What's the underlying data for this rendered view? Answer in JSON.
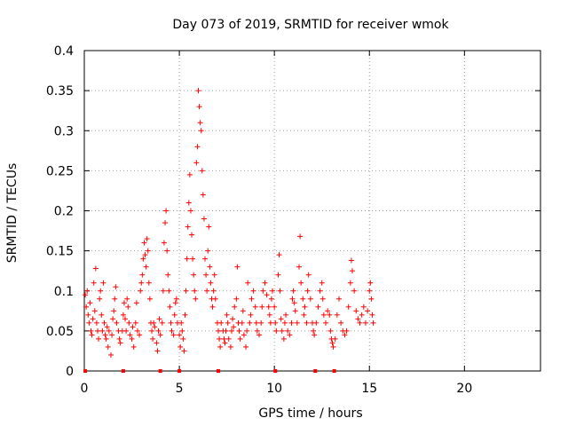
{
  "chart_data": {
    "type": "scatter",
    "title": "Day 073 of 2019, SRMTID for receiver wmok",
    "xlabel": "GPS time / hours",
    "ylabel": "SRMTID / TECUs",
    "xlim": [
      0,
      24
    ],
    "ylim": [
      0,
      0.4
    ],
    "x_ticks": [
      0,
      5,
      10,
      15,
      20
    ],
    "y_ticks": [
      0,
      0.05,
      0.1,
      0.15,
      0.2,
      0.25,
      0.3,
      0.35,
      0.4
    ],
    "x_tick_labels": [
      "0",
      "5",
      "10",
      "15",
      "20"
    ],
    "y_tick_labels": [
      "0",
      "0.05",
      "0.1",
      "0.15",
      "0.2",
      "0.25",
      "0.3",
      "0.35",
      "0.4"
    ],
    "grid": true,
    "marker": "+",
    "series_color": "#ff0000",
    "series": [
      {
        "name": "SRMTID",
        "points": [
          [
            0.05,
            0.095
          ],
          [
            0.1,
            0.08
          ],
          [
            0.15,
            0.1
          ],
          [
            0.2,
            0.07
          ],
          [
            0.25,
            0.06
          ],
          [
            0.3,
            0.085
          ],
          [
            0.35,
            0.05
          ],
          [
            0.4,
            0.045
          ],
          [
            0.45,
            0.065
          ],
          [
            0.5,
            0.11
          ],
          [
            0.55,
            0.075
          ],
          [
            0.6,
            0.128
          ],
          [
            0.65,
            0.06
          ],
          [
            0.7,
            0.05
          ],
          [
            0.75,
            0.04
          ],
          [
            0.8,
            0.09
          ],
          [
            0.85,
            0.1
          ],
          [
            0.9,
            0.07
          ],
          [
            0.95,
            0.05
          ],
          [
            1.0,
            0.11
          ],
          [
            1.05,
            0.06
          ],
          [
            1.1,
            0.045
          ],
          [
            1.15,
            0.04
          ],
          [
            1.2,
            0.055
          ],
          [
            1.25,
            0.03
          ],
          [
            1.3,
            0.05
          ],
          [
            1.4,
            0.02
          ],
          [
            1.45,
            0.045
          ],
          [
            1.5,
            0.065
          ],
          [
            1.55,
            0.075
          ],
          [
            1.6,
            0.09
          ],
          [
            1.65,
            0.105
          ],
          [
            1.7,
            0.06
          ],
          [
            1.8,
            0.05
          ],
          [
            1.85,
            0.04
          ],
          [
            1.9,
            0.035
          ],
          [
            2.0,
            0.05
          ],
          [
            2.05,
            0.07
          ],
          [
            2.1,
            0.085
          ],
          [
            2.15,
            0.065
          ],
          [
            2.2,
            0.05
          ],
          [
            2.25,
            0.09
          ],
          [
            2.3,
            0.08
          ],
          [
            2.35,
            0.06
          ],
          [
            2.4,
            0.045
          ],
          [
            2.5,
            0.04
          ],
          [
            2.55,
            0.055
          ],
          [
            2.6,
            0.03
          ],
          [
            2.7,
            0.06
          ],
          [
            2.75,
            0.085
          ],
          [
            2.8,
            0.05
          ],
          [
            2.9,
            0.045
          ],
          [
            2.95,
            0.1
          ],
          [
            3.0,
            0.11
          ],
          [
            3.05,
            0.12
          ],
          [
            3.1,
            0.14
          ],
          [
            3.15,
            0.16
          ],
          [
            3.2,
            0.145
          ],
          [
            3.25,
            0.13
          ],
          [
            3.3,
            0.165
          ],
          [
            3.35,
            0.15
          ],
          [
            3.4,
            0.11
          ],
          [
            3.45,
            0.09
          ],
          [
            3.5,
            0.06
          ],
          [
            3.55,
            0.05
          ],
          [
            3.6,
            0.04
          ],
          [
            3.65,
            0.06
          ],
          [
            3.7,
            0.055
          ],
          [
            3.8,
            0.035
          ],
          [
            3.85,
            0.025
          ],
          [
            3.9,
            0.05
          ],
          [
            3.95,
            0.065
          ],
          [
            4.0,
            0.045
          ],
          [
            4.1,
            0.06
          ],
          [
            4.15,
            0.1
          ],
          [
            4.2,
            0.16
          ],
          [
            4.25,
            0.185
          ],
          [
            4.3,
            0.2
          ],
          [
            4.35,
            0.15
          ],
          [
            4.4,
            0.12
          ],
          [
            4.45,
            0.1
          ],
          [
            4.5,
            0.08
          ],
          [
            4.55,
            0.06
          ],
          [
            4.6,
            0.05
          ],
          [
            4.7,
            0.045
          ],
          [
            4.75,
            0.07
          ],
          [
            4.8,
            0.085
          ],
          [
            4.85,
            0.09
          ],
          [
            4.9,
            0.06
          ],
          [
            5.0,
            0.045
          ],
          [
            5.05,
            0.03
          ],
          [
            5.1,
            0.06
          ],
          [
            5.15,
            0.05
          ],
          [
            5.2,
            0.04
          ],
          [
            5.25,
            0.025
          ],
          [
            5.3,
            0.07
          ],
          [
            5.35,
            0.1
          ],
          [
            5.4,
            0.14
          ],
          [
            5.45,
            0.18
          ],
          [
            5.5,
            0.21
          ],
          [
            5.55,
            0.245
          ],
          [
            5.6,
            0.2
          ],
          [
            5.65,
            0.17
          ],
          [
            5.7,
            0.14
          ],
          [
            5.75,
            0.12
          ],
          [
            5.8,
            0.1
          ],
          [
            5.85,
            0.09
          ],
          [
            5.9,
            0.26
          ],
          [
            5.95,
            0.28
          ],
          [
            6.0,
            0.35
          ],
          [
            6.05,
            0.33
          ],
          [
            6.1,
            0.31
          ],
          [
            6.15,
            0.3
          ],
          [
            6.2,
            0.25
          ],
          [
            6.25,
            0.22
          ],
          [
            6.3,
            0.19
          ],
          [
            6.35,
            0.14
          ],
          [
            6.4,
            0.12
          ],
          [
            6.45,
            0.1
          ],
          [
            6.5,
            0.15
          ],
          [
            6.55,
            0.18
          ],
          [
            6.6,
            0.13
          ],
          [
            6.65,
            0.11
          ],
          [
            6.7,
            0.09
          ],
          [
            6.75,
            0.08
          ],
          [
            6.8,
            0.1
          ],
          [
            6.85,
            0.12
          ],
          [
            6.9,
            0.09
          ],
          [
            7.0,
            0.06
          ],
          [
            7.05,
            0.05
          ],
          [
            7.1,
            0.04
          ],
          [
            7.15,
            0.03
          ],
          [
            7.2,
            0.06
          ],
          [
            7.3,
            0.05
          ],
          [
            7.35,
            0.04
          ],
          [
            7.4,
            0.035
          ],
          [
            7.45,
            0.05
          ],
          [
            7.5,
            0.07
          ],
          [
            7.55,
            0.06
          ],
          [
            7.6,
            0.04
          ],
          [
            7.7,
            0.03
          ],
          [
            7.75,
            0.05
          ],
          [
            7.8,
            0.065
          ],
          [
            7.85,
            0.055
          ],
          [
            7.9,
            0.08
          ],
          [
            8.0,
            0.09
          ],
          [
            8.05,
            0.13
          ],
          [
            8.1,
            0.06
          ],
          [
            8.15,
            0.05
          ],
          [
            8.2,
            0.04
          ],
          [
            8.3,
            0.06
          ],
          [
            8.35,
            0.075
          ],
          [
            8.4,
            0.045
          ],
          [
            8.5,
            0.03
          ],
          [
            8.55,
            0.05
          ],
          [
            8.6,
            0.11
          ],
          [
            8.7,
            0.06
          ],
          [
            8.75,
            0.07
          ],
          [
            8.8,
            0.09
          ],
          [
            8.9,
            0.1
          ],
          [
            9.0,
            0.08
          ],
          [
            9.05,
            0.06
          ],
          [
            9.1,
            0.05
          ],
          [
            9.2,
            0.045
          ],
          [
            9.3,
            0.06
          ],
          [
            9.35,
            0.08
          ],
          [
            9.4,
            0.1
          ],
          [
            9.5,
            0.11
          ],
          [
            9.6,
            0.095
          ],
          [
            9.7,
            0.08
          ],
          [
            9.75,
            0.07
          ],
          [
            9.8,
            0.06
          ],
          [
            9.85,
            0.09
          ],
          [
            9.9,
            0.1
          ],
          [
            10.0,
            0.08
          ],
          [
            10.05,
            0.06
          ],
          [
            10.1,
            0.05
          ],
          [
            10.2,
            0.12
          ],
          [
            10.25,
            0.145
          ],
          [
            10.3,
            0.1
          ],
          [
            10.35,
            0.065
          ],
          [
            10.4,
            0.05
          ],
          [
            10.5,
            0.04
          ],
          [
            10.55,
            0.06
          ],
          [
            10.6,
            0.07
          ],
          [
            10.7,
            0.05
          ],
          [
            10.8,
            0.045
          ],
          [
            10.9,
            0.06
          ],
          [
            10.95,
            0.09
          ],
          [
            11.0,
            0.1
          ],
          [
            11.05,
            0.085
          ],
          [
            11.1,
            0.075
          ],
          [
            11.2,
            0.06
          ],
          [
            11.3,
            0.13
          ],
          [
            11.35,
            0.168
          ],
          [
            11.4,
            0.11
          ],
          [
            11.5,
            0.09
          ],
          [
            11.55,
            0.07
          ],
          [
            11.6,
            0.08
          ],
          [
            11.7,
            0.06
          ],
          [
            11.75,
            0.1
          ],
          [
            11.8,
            0.12
          ],
          [
            11.9,
            0.09
          ],
          [
            12.0,
            0.06
          ],
          [
            12.05,
            0.05
          ],
          [
            12.1,
            0.045
          ],
          [
            12.2,
            0.06
          ],
          [
            12.3,
            0.08
          ],
          [
            12.4,
            0.1
          ],
          [
            12.5,
            0.11
          ],
          [
            12.55,
            0.09
          ],
          [
            12.6,
            0.07
          ],
          [
            12.7,
            0.06
          ],
          [
            12.8,
            0.075
          ],
          [
            12.9,
            0.07
          ],
          [
            12.95,
            0.05
          ],
          [
            13.0,
            0.04
          ],
          [
            13.05,
            0.035
          ],
          [
            13.1,
            0.03
          ],
          [
            13.2,
            0.04
          ],
          [
            13.3,
            0.07
          ],
          [
            13.4,
            0.09
          ],
          [
            13.5,
            0.06
          ],
          [
            13.6,
            0.05
          ],
          [
            13.7,
            0.045
          ],
          [
            13.8,
            0.05
          ],
          [
            13.9,
            0.08
          ],
          [
            14.0,
            0.11
          ],
          [
            14.05,
            0.138
          ],
          [
            14.1,
            0.125
          ],
          [
            14.2,
            0.1
          ],
          [
            14.3,
            0.075
          ],
          [
            14.4,
            0.065
          ],
          [
            14.5,
            0.06
          ],
          [
            14.6,
            0.07
          ],
          [
            14.7,
            0.08
          ],
          [
            14.8,
            0.06
          ],
          [
            14.9,
            0.075
          ],
          [
            15.0,
            0.1
          ],
          [
            15.05,
            0.11
          ],
          [
            15.1,
            0.09
          ],
          [
            15.15,
            0.07
          ],
          [
            15.2,
            0.06
          ]
        ]
      }
    ],
    "baseline_markers_x": [
      0.05,
      2.05,
      4.0,
      5.0,
      7.05,
      10.05,
      12.15,
      13.15
    ]
  }
}
